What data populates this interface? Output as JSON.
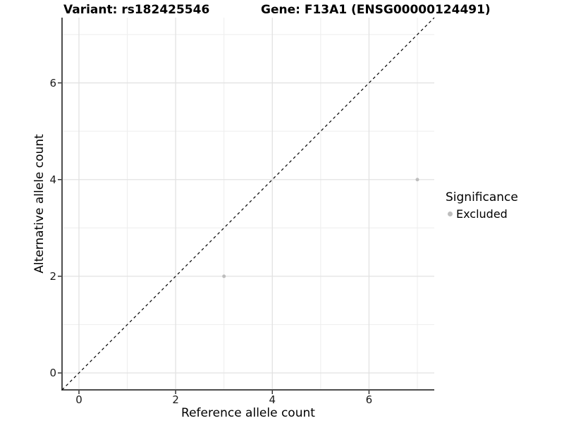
{
  "titles": {
    "variant": "Variant: rs182425546",
    "gene": "Gene: F13A1 (ENSG00000124491)"
  },
  "chart_data": {
    "type": "scatter",
    "title": "Variant: rs182425546    Gene: F13A1 (ENSG00000124491)",
    "xlabel": "Reference allele count",
    "ylabel": "Alternative allele count",
    "xlim": [
      -0.35,
      7.35
    ],
    "ylim": [
      -0.35,
      7.35
    ],
    "x_ticks": [
      0,
      2,
      4,
      6
    ],
    "y_ticks": [
      0,
      2,
      4,
      6
    ],
    "x_minor_ticks": [
      1,
      3,
      5,
      7
    ],
    "y_minor_ticks": [
      1,
      3,
      5,
      7
    ],
    "grid": true,
    "reference_line": {
      "type": "identity",
      "equation": "y = x",
      "style": "dashed",
      "color": "#000000",
      "from": [
        -0.35,
        -0.35
      ],
      "to": [
        7.35,
        7.35
      ]
    },
    "series": [
      {
        "name": "Excluded",
        "marker": "circle",
        "color": "#bebebe",
        "points": [
          [
            3,
            2
          ],
          [
            7,
            4
          ]
        ]
      }
    ],
    "legend": {
      "title": "Significance",
      "position": "right",
      "items": [
        {
          "label": "Excluded",
          "color": "#bebebe"
        }
      ]
    }
  },
  "colors": {
    "background": "#ffffff",
    "grid_major": "#e2e2e2",
    "grid_minor": "#ededed",
    "axis_line": "#4d4d4d",
    "tick_mark": "#333333",
    "text": "#000000"
  }
}
